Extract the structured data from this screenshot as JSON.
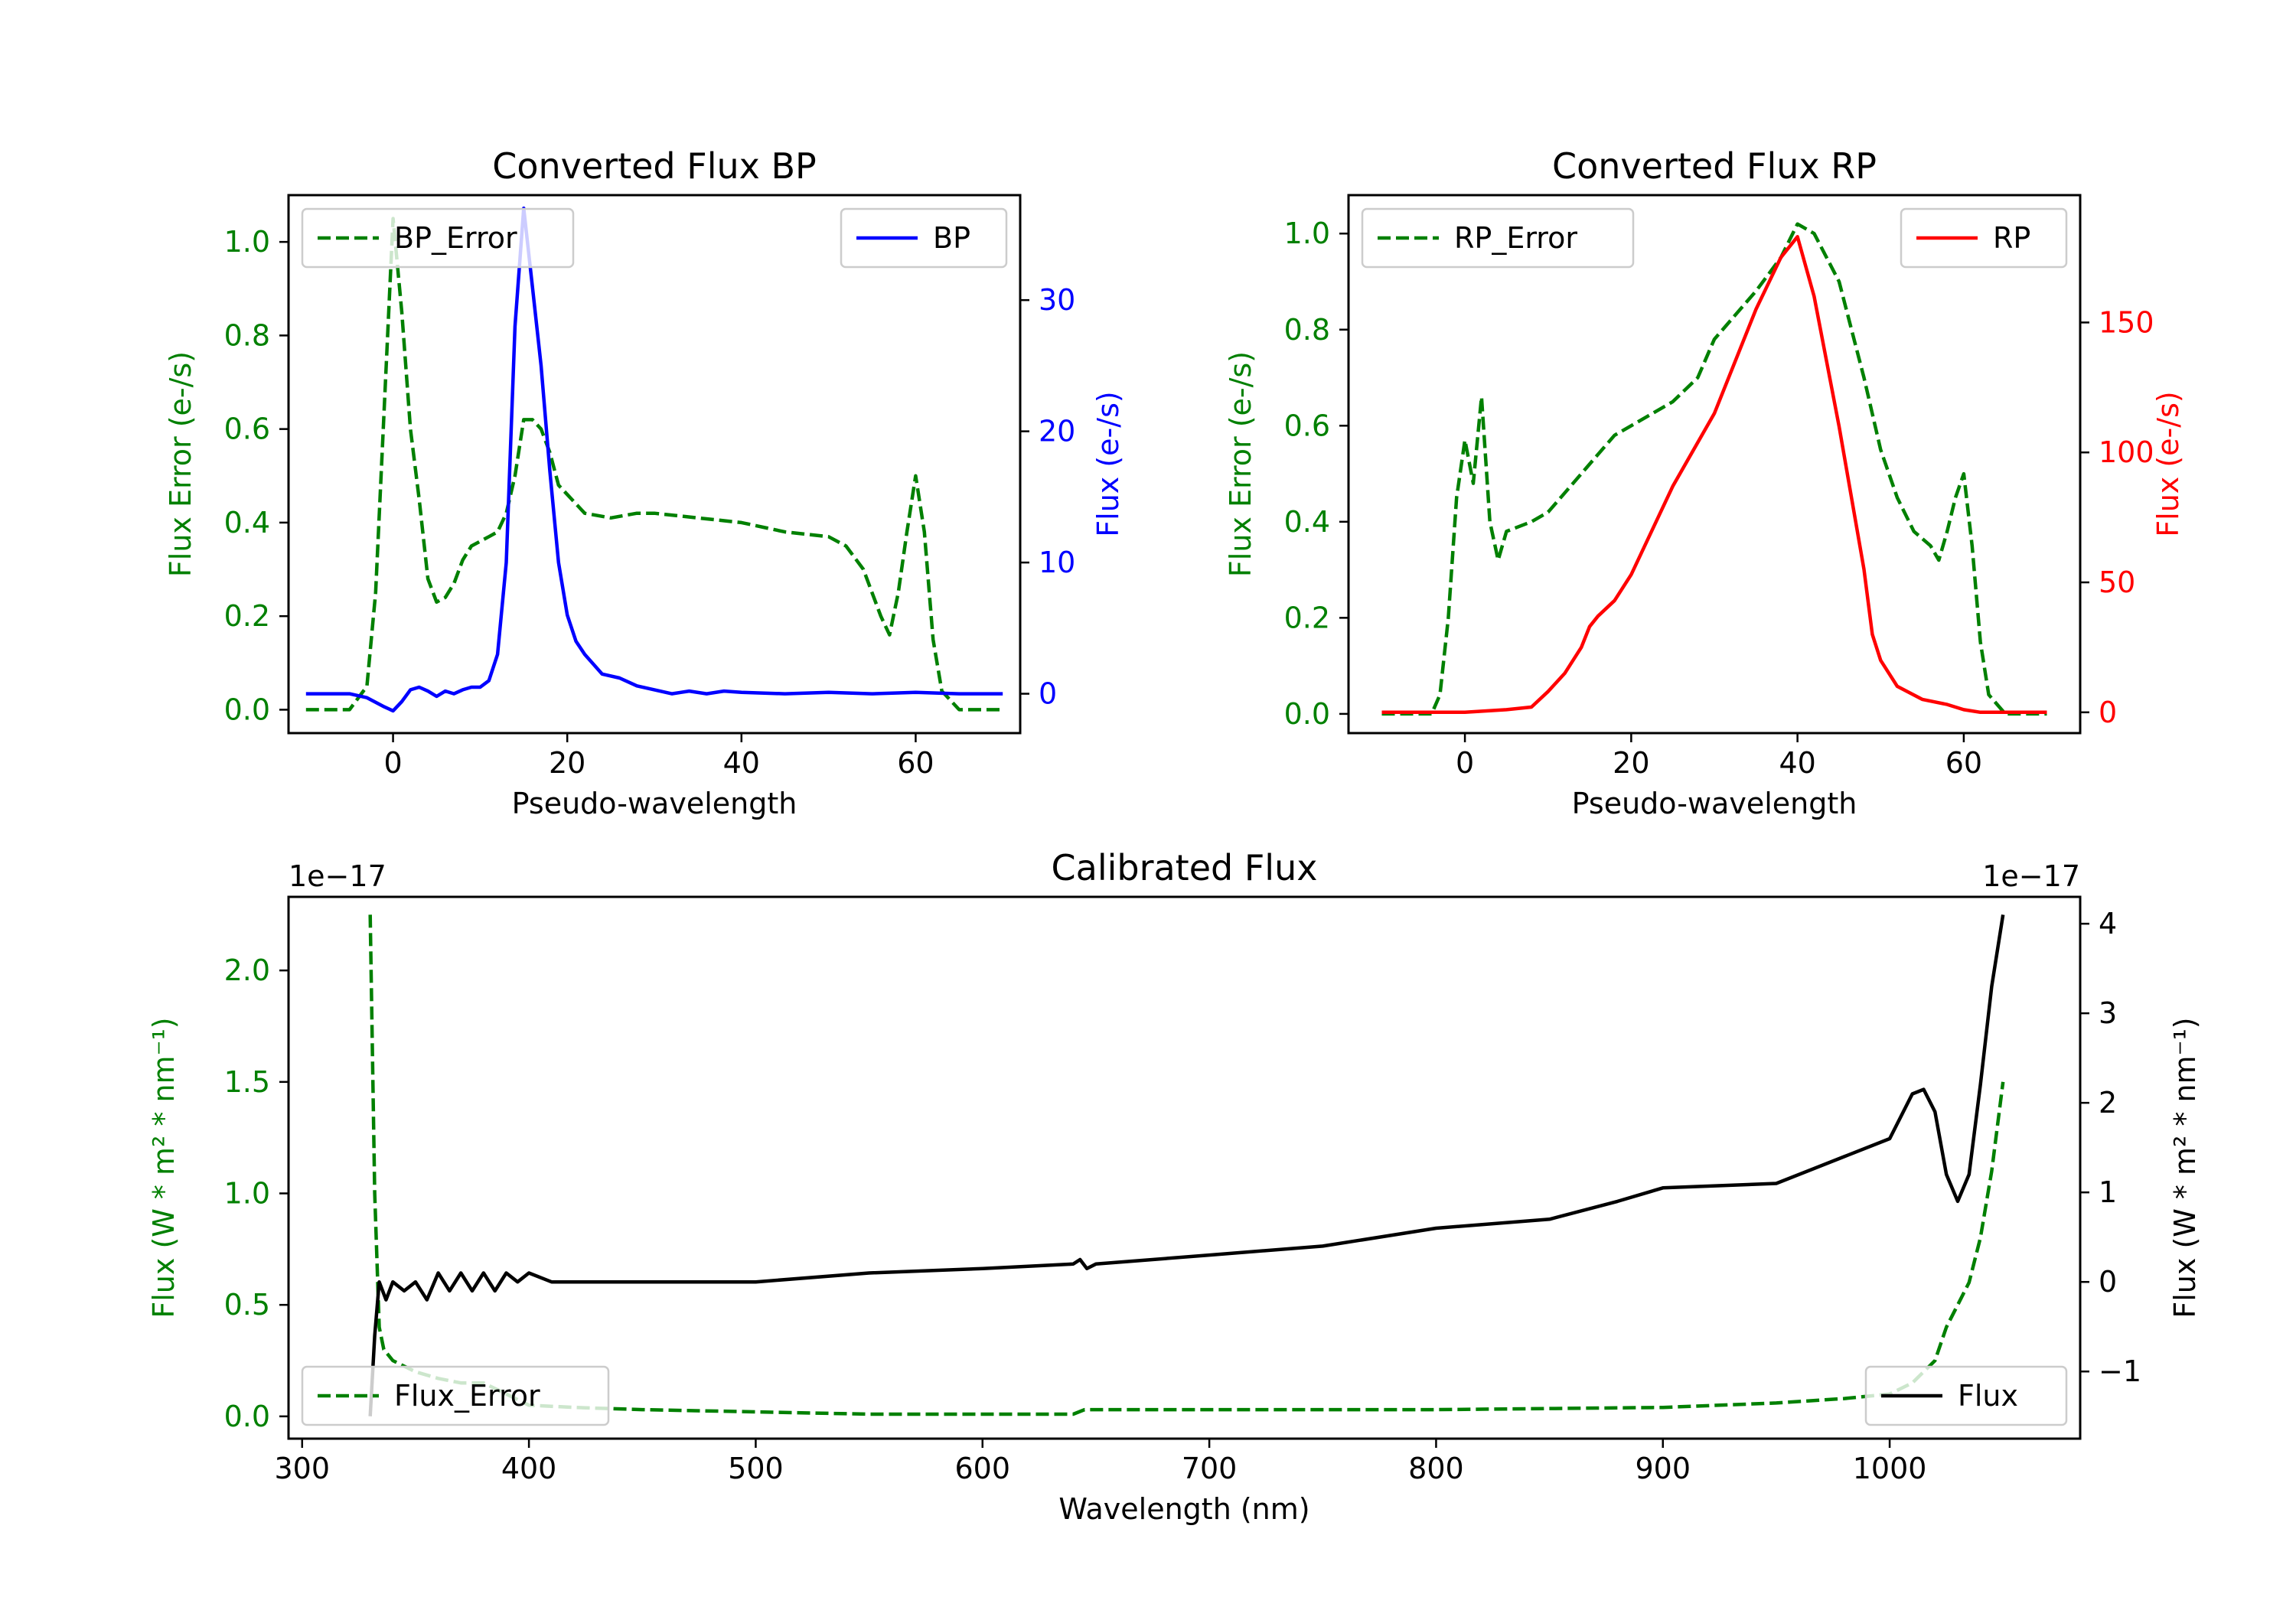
{
  "chart_data": [
    {
      "type": "line",
      "title": "Converted Flux BP",
      "xlabel": "Pseudo-wavelength",
      "ylabel_left": "Flux Error (e-/s)",
      "ylabel_right": "Flux (e-/s)",
      "xlim": [
        -12,
        72
      ],
      "ylim_left": [
        -0.05,
        1.1
      ],
      "ylim_right": [
        -3,
        38
      ],
      "xticks": [
        0,
        20,
        40,
        60
      ],
      "yticks_left": [
        0.0,
        0.2,
        0.4,
        0.6,
        0.8,
        1.0
      ],
      "yticks_right": [
        0,
        10,
        20,
        30
      ],
      "legend_left": "top-left",
      "legend_right": "top-right",
      "series": [
        {
          "name": "BP_Error",
          "axis": "left",
          "color": "#008000",
          "style": "dashed",
          "x": [
            -10,
            -5,
            -3,
            -2,
            -1,
            0,
            1,
            2,
            3,
            4,
            5,
            6,
            7,
            8,
            9,
            10,
            11,
            12,
            13,
            14,
            15,
            16,
            17,
            18,
            19,
            20,
            22,
            25,
            28,
            30,
            35,
            40,
            45,
            50,
            52,
            54,
            56,
            57,
            58,
            59,
            60,
            61,
            62,
            63,
            65,
            70
          ],
          "y": [
            0.0,
            0.0,
            0.05,
            0.25,
            0.65,
            1.05,
            0.85,
            0.6,
            0.45,
            0.28,
            0.23,
            0.24,
            0.27,
            0.32,
            0.35,
            0.36,
            0.37,
            0.38,
            0.42,
            0.5,
            0.62,
            0.62,
            0.6,
            0.55,
            0.48,
            0.46,
            0.42,
            0.41,
            0.42,
            0.42,
            0.41,
            0.4,
            0.38,
            0.37,
            0.35,
            0.3,
            0.2,
            0.16,
            0.25,
            0.38,
            0.5,
            0.38,
            0.15,
            0.04,
            0.0,
            0.0
          ]
        },
        {
          "name": "BP",
          "axis": "right",
          "color": "#0000ff",
          "style": "solid",
          "x": [
            -10,
            -5,
            -3,
            -1,
            0,
            1,
            2,
            3,
            4,
            5,
            6,
            7,
            8,
            9,
            10,
            11,
            12,
            13,
            14,
            15,
            16,
            17,
            18,
            19,
            20,
            21,
            22,
            24,
            26,
            28,
            30,
            32,
            34,
            36,
            38,
            40,
            45,
            50,
            55,
            60,
            65,
            70
          ],
          "y": [
            0.0,
            0.0,
            -0.3,
            -1.0,
            -1.3,
            -0.6,
            0.3,
            0.5,
            0.2,
            -0.2,
            0.2,
            0.0,
            0.3,
            0.5,
            0.5,
            1.0,
            3.0,
            10.0,
            28.0,
            37.0,
            31.0,
            25.0,
            17.0,
            10.0,
            6.0,
            4.0,
            3.0,
            1.5,
            1.2,
            0.6,
            0.3,
            0.0,
            0.2,
            0.0,
            0.2,
            0.1,
            0.0,
            0.1,
            0.0,
            0.1,
            0.0,
            0.0
          ]
        }
      ]
    },
    {
      "type": "line",
      "title": "Converted Flux RP",
      "xlabel": "Pseudo-wavelength",
      "ylabel_left": "Flux Error (e-/s)",
      "ylabel_right": "Flux (e-/s)",
      "xlim": [
        -14,
        74
      ],
      "ylim_left": [
        -0.04,
        1.08
      ],
      "ylim_right": [
        -8,
        199
      ],
      "xticks": [
        0,
        20,
        40,
        60
      ],
      "yticks_left": [
        0.0,
        0.2,
        0.4,
        0.6,
        0.8,
        1.0
      ],
      "yticks_right": [
        0,
        50,
        100,
        150
      ],
      "legend_left": "top-left",
      "legend_right": "top-right",
      "series": [
        {
          "name": "RP_Error",
          "axis": "left",
          "color": "#008000",
          "style": "dashed",
          "x": [
            -10,
            -4,
            -3,
            -2,
            -1,
            0,
            1,
            2,
            3,
            4,
            5,
            8,
            10,
            12,
            15,
            18,
            20,
            25,
            28,
            30,
            35,
            38,
            40,
            42,
            45,
            48,
            50,
            52,
            54,
            56,
            57,
            58,
            59,
            60,
            61,
            62,
            63,
            65,
            70
          ],
          "y": [
            0.0,
            0.0,
            0.04,
            0.2,
            0.45,
            0.57,
            0.48,
            0.66,
            0.4,
            0.32,
            0.38,
            0.4,
            0.42,
            0.46,
            0.52,
            0.58,
            0.6,
            0.65,
            0.7,
            0.78,
            0.88,
            0.95,
            1.02,
            1.0,
            0.9,
            0.7,
            0.55,
            0.45,
            0.38,
            0.35,
            0.32,
            0.38,
            0.45,
            0.5,
            0.35,
            0.15,
            0.04,
            0.0,
            0.0
          ]
        },
        {
          "name": "RP",
          "axis": "right",
          "color": "#ff0000",
          "style": "solid",
          "x": [
            -10,
            0,
            5,
            8,
            10,
            12,
            14,
            15,
            16,
            18,
            20,
            25,
            30,
            35,
            38,
            40,
            42,
            45,
            48,
            49,
            50,
            52,
            55,
            58,
            60,
            62,
            65,
            70
          ],
          "y": [
            0.0,
            0.0,
            1.0,
            2.0,
            8.0,
            15.0,
            25.0,
            33.0,
            37.0,
            43.0,
            53.0,
            87.0,
            115.0,
            155.0,
            175.0,
            183.0,
            160.0,
            110.0,
            55.0,
            30.0,
            20.0,
            10.0,
            5.0,
            3.0,
            1.0,
            0.0,
            0.0,
            0.0
          ]
        }
      ]
    },
    {
      "type": "line",
      "title": "Calibrated Flux",
      "xlabel": "Wavelength (nm)",
      "ylabel_left": "Flux (W * m² * nm⁻¹)",
      "ylabel_right": "Flux (W * m² * nm⁻¹)",
      "offset_left": "1e−17",
      "offset_right": "1e−17",
      "xlim": [
        294,
        1084
      ],
      "ylim_left": [
        -0.1,
        2.33
      ],
      "ylim_right": [
        -1.75,
        4.3
      ],
      "xticks": [
        300,
        400,
        500,
        600,
        700,
        800,
        900,
        1000
      ],
      "yticks_left": [
        0.0,
        0.5,
        1.0,
        1.5,
        2.0
      ],
      "yticks_right": [
        -1,
        0,
        1,
        2,
        3,
        4
      ],
      "legend_left": "lower-left",
      "legend_right": "lower-right",
      "series": [
        {
          "name": "Flux_Error",
          "axis": "left",
          "color": "#008000",
          "style": "dashed",
          "x": [
            330,
            332,
            334,
            336,
            340,
            350,
            360,
            370,
            380,
            390,
            400,
            420,
            450,
            500,
            550,
            600,
            640,
            645,
            700,
            800,
            900,
            950,
            980,
            1000,
            1010,
            1020,
            1025,
            1030,
            1035,
            1040,
            1045,
            1050
          ],
          "y": [
            2.25,
            1.0,
            0.4,
            0.3,
            0.25,
            0.2,
            0.17,
            0.15,
            0.15,
            0.1,
            0.05,
            0.04,
            0.03,
            0.02,
            0.01,
            0.01,
            0.01,
            0.03,
            0.03,
            0.03,
            0.04,
            0.06,
            0.08,
            0.1,
            0.15,
            0.25,
            0.4,
            0.5,
            0.6,
            0.8,
            1.1,
            1.5
          ]
        },
        {
          "name": "Flux",
          "axis": "right",
          "color": "#000000",
          "style": "solid",
          "x": [
            330,
            332,
            334,
            337,
            340,
            345,
            350,
            355,
            360,
            365,
            370,
            375,
            380,
            385,
            390,
            395,
            400,
            410,
            420,
            430,
            440,
            450,
            470,
            500,
            550,
            600,
            640,
            643,
            646,
            650,
            700,
            750,
            800,
            850,
            880,
            900,
            950,
            980,
            1000,
            1010,
            1015,
            1020,
            1025,
            1030,
            1035,
            1040,
            1045,
            1050
          ],
          "y": [
            -1.5,
            -0.6,
            0.0,
            -0.2,
            0.0,
            -0.1,
            0.0,
            -0.2,
            0.1,
            -0.1,
            0.1,
            -0.1,
            0.1,
            -0.1,
            0.1,
            0.0,
            0.1,
            0.0,
            0.0,
            0.0,
            0.0,
            0.0,
            0.0,
            0.0,
            0.1,
            0.15,
            0.2,
            0.25,
            0.15,
            0.2,
            0.3,
            0.4,
            0.6,
            0.7,
            0.9,
            1.05,
            1.1,
            1.4,
            1.6,
            2.1,
            2.15,
            1.9,
            1.2,
            0.9,
            1.2,
            2.2,
            3.3,
            4.1
          ]
        }
      ]
    }
  ]
}
